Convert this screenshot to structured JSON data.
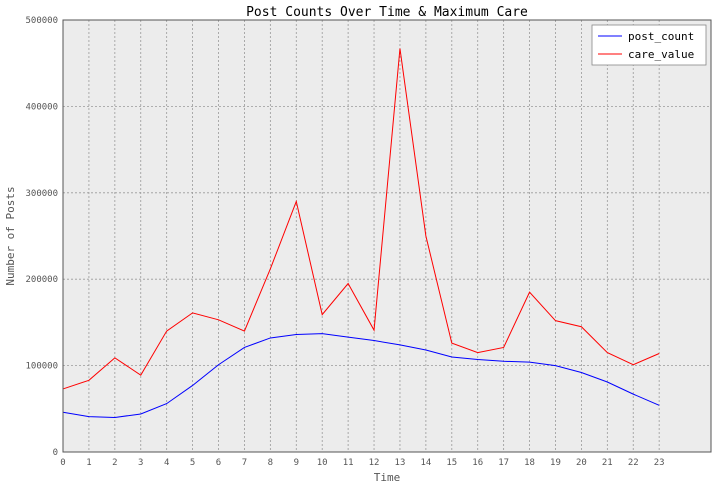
{
  "chart_data": {
    "type": "line",
    "title": "Post Counts Over Time & Maximum Care",
    "xlabel": "Time",
    "ylabel": "Number of Posts",
    "x": [
      0,
      1,
      2,
      3,
      4,
      5,
      6,
      7,
      8,
      9,
      10,
      11,
      12,
      13,
      14,
      15,
      16,
      17,
      18,
      19,
      20,
      21,
      22,
      23
    ],
    "xlim": [
      0,
      25
    ],
    "ylim": [
      0,
      500000
    ],
    "yticks": [
      0,
      100000,
      200000,
      300000,
      400000,
      500000
    ],
    "grid": true,
    "legend": "top-right",
    "series": [
      {
        "name": "post_count",
        "color": "#0000ff",
        "values": [
          46000,
          41000,
          40000,
          44000,
          56000,
          77000,
          101000,
          121000,
          132000,
          136000,
          137000,
          133000,
          129000,
          124000,
          118000,
          110000,
          107000,
          105000,
          104000,
          100000,
          92000,
          81000,
          67000,
          54000
        ]
      },
      {
        "name": "care_value",
        "color": "#ff0000",
        "values": [
          73000,
          83000,
          109000,
          89000,
          140000,
          161000,
          153000,
          140000,
          212000,
          290000,
          159000,
          195000,
          141000,
          467000,
          250000,
          126000,
          115000,
          121000,
          185000,
          152000,
          145000,
          115000,
          101000,
          114000
        ]
      }
    ]
  }
}
